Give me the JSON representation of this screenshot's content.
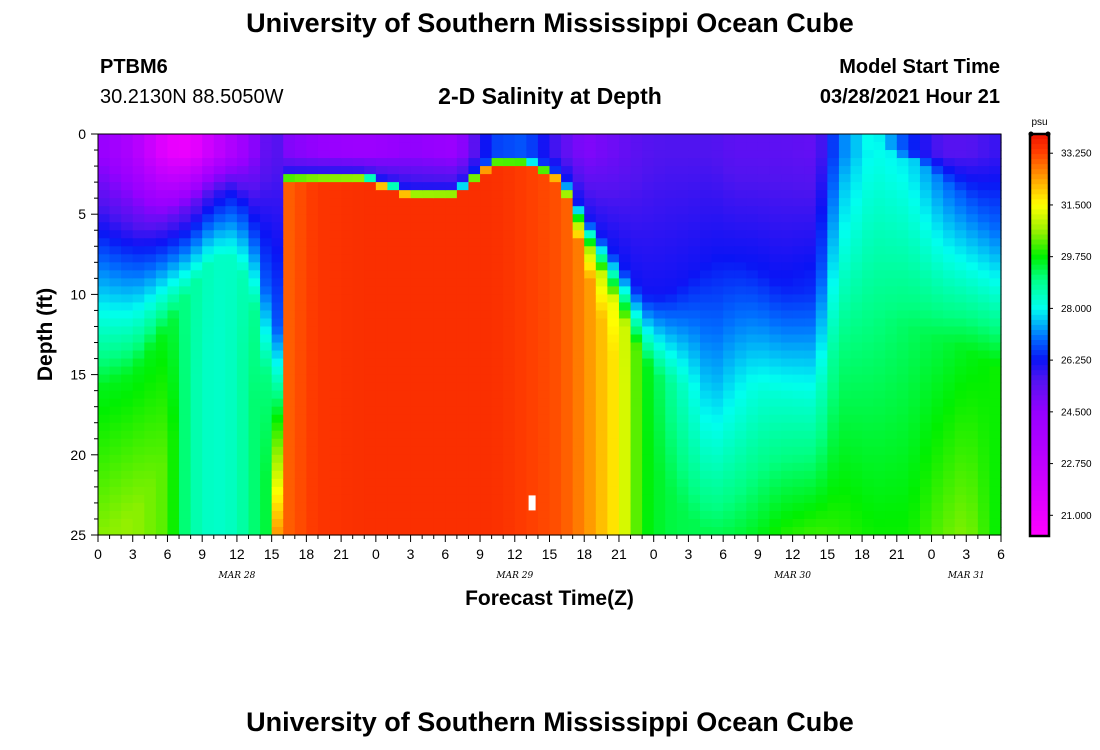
{
  "header": {
    "title": "University of Southern Mississippi Ocean Cube",
    "station_id": "PTBM6",
    "coordinates": "30.2130N  88.5050W",
    "chart_title": "2-D Salinity at Depth",
    "model_start_label": "Model Start Time",
    "model_start_value": "03/28/2021 Hour 21"
  },
  "footer": {
    "title": "University of Southern Mississippi Ocean Cube"
  },
  "chart_data": {
    "type": "heatmap",
    "title": "2-D Salinity at Depth",
    "xlabel": "Forecast Time(Z)",
    "ylabel": "Depth (ft)",
    "x_unit": "hours from Mar 28 00Z",
    "xlim": [
      0,
      78
    ],
    "ylim": [
      0,
      25
    ],
    "y_inverted": true,
    "x_tick_labels": [
      "0",
      "3",
      "6",
      "9",
      "12",
      "15",
      "18",
      "21",
      "0",
      "3",
      "6",
      "9",
      "12",
      "15",
      "18",
      "21",
      "0",
      "3",
      "6",
      "9",
      "12",
      "15",
      "18",
      "21",
      "0",
      "3",
      "6"
    ],
    "y_tick_labels": [
      "0",
      "5",
      "10",
      "15",
      "20",
      "25"
    ],
    "day_labels": [
      {
        "text": "MAR 28",
        "hour": 12
      },
      {
        "text": "MAR 29",
        "hour": 36
      },
      {
        "text": "MAR 30",
        "hour": 60
      },
      {
        "text": "MAR 31",
        "hour": 75
      }
    ],
    "colorbar": {
      "unit": "psu",
      "range": [
        20.3,
        33.9
      ],
      "tick_labels": [
        "33.250",
        "31.500",
        "29.750",
        "28.000",
        "26.250",
        "24.500",
        "22.750",
        "21.000"
      ]
    },
    "salinity_profile": {
      "hours": [
        0,
        3,
        6,
        8,
        10,
        12,
        14,
        15,
        15.5,
        16.5,
        19,
        23,
        27,
        31,
        34,
        37,
        40,
        42,
        45,
        47,
        49,
        51,
        53,
        55,
        57,
        59,
        62,
        64,
        67,
        70,
        73,
        75,
        77.5
      ],
      "depth_mid_ft": [
        25,
        24,
        20,
        16,
        13,
        13,
        18,
        25,
        25,
        3,
        3,
        3,
        4,
        4,
        2,
        2,
        3,
        8,
        15,
        19,
        22,
        24,
        25,
        25,
        25,
        25,
        25,
        25,
        25,
        25,
        25,
        25,
        25
      ],
      "depth_top_ft": [
        8.5,
        7.5,
        5.5,
        4.5,
        3.5,
        3.5,
        7,
        12,
        12,
        2.5,
        2.5,
        2.5,
        3.5,
        3.5,
        1.5,
        1.5,
        2.5,
        5,
        8,
        10,
        10,
        9,
        7.5,
        7.5,
        8.5,
        9.5,
        10,
        3.5,
        0.5,
        1.5,
        3,
        4,
        6
      ],
      "surface_psu": [
        24.5,
        23.5,
        21.2,
        21.0,
        22.5,
        23.8,
        25.0,
        25.6,
        25.5,
        24.8,
        24.5,
        24.2,
        24.6,
        24.3,
        26.6,
        26.8,
        25.5,
        24.8,
        25.2,
        25.5,
        25.6,
        25.6,
        25.6,
        25.4,
        25.4,
        25.4,
        25.3,
        27.0,
        28.2,
        26.5,
        25.5,
        25.5,
        25.8
      ],
      "mid_psu": [
        29.6,
        29.6,
        29.6,
        28.8,
        28.4,
        28.4,
        29.0,
        29.0,
        29.8,
        29.9,
        30.2,
        30.3,
        30.4,
        30.3,
        29.9,
        29.8,
        30.0,
        30.6,
        31.5,
        29.8,
        29.0,
        28.2,
        27.4,
        27.8,
        28.2,
        28.3,
        28.3,
        29.0,
        29.0,
        29.2,
        29.4,
        29.6,
        29.8
      ],
      "deep_psu": [
        30.5,
        30.6,
        30.2,
        28.7,
        28.3,
        28.5,
        29.3,
        29.5,
        32.5,
        33.0,
        33.4,
        33.5,
        33.5,
        33.5,
        33.5,
        33.3,
        33.1,
        32.6,
        31.6,
        29.8,
        29.4,
        29.3,
        29.3,
        29.4,
        29.6,
        29.9,
        30.1,
        30.0,
        29.8,
        29.8,
        30.3,
        30.5,
        29.8
      ],
      "top_transition_psu": [
        27.2,
        26.5,
        25.5,
        25.3,
        25.7,
        26.2,
        26.7,
        27.0,
        26.8,
        26.2,
        26.2,
        26.2,
        26.2,
        26.2,
        26.8,
        26.8,
        26.5,
        26.2,
        26.3,
        26.2,
        26.2,
        26.2,
        26.2,
        26.2,
        26.3,
        26.3,
        26.5,
        27.5,
        28.0,
        27.8,
        27.0,
        26.8,
        27.0
      ]
    },
    "marker": {
      "hour": 37.5,
      "depth_ft": 23
    }
  }
}
